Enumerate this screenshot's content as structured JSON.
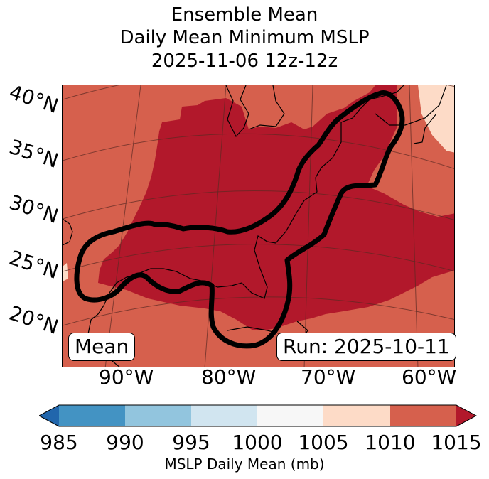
{
  "title": {
    "line1": "Ensemble Mean",
    "line2": "Daily Mean Minimum MSLP",
    "line3": "2025-11-06 12z-12z"
  },
  "map": {
    "latitude_labels": [
      "40°N",
      "35°N",
      "30°N",
      "25°N",
      "20°N"
    ],
    "longitude_labels": [
      "90°W",
      "80°W",
      "70°W",
      "60°W"
    ],
    "mean_label": "Mean",
    "run_label": "Run: 2025-10-11",
    "field_colors": {
      "band_1005_1010": "#fddbc7",
      "band_1010_1015": "#d6604d",
      "band_1015_plus": "#b2182b"
    },
    "contour_color": "#000000"
  },
  "colorbar": {
    "ticks": [
      "985",
      "990",
      "995",
      "1000",
      "1005",
      "1010",
      "1015"
    ],
    "colors": [
      "#2166ac",
      "#4393c3",
      "#92c5de",
      "#d1e5f0",
      "#f7f7f7",
      "#fddbc7",
      "#d6604d",
      "#b2182b"
    ],
    "label": "MSLP Daily Mean (mb)"
  }
}
